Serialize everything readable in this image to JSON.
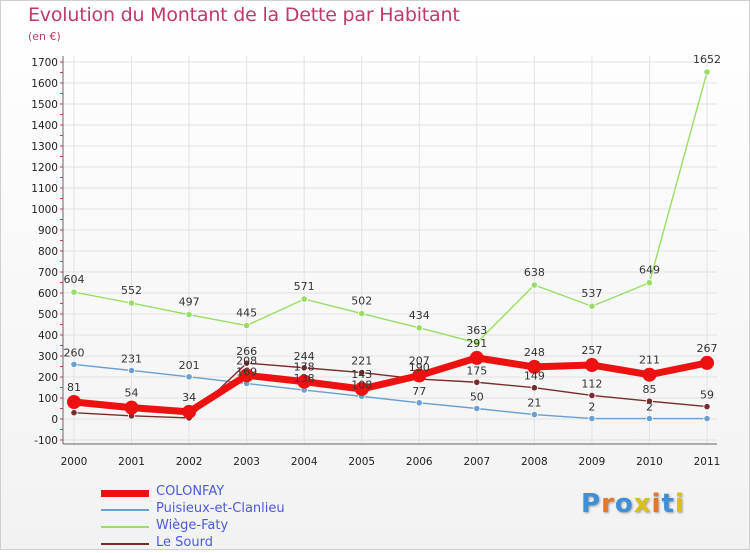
{
  "header": {
    "title": "Evolution du Montant de la Dette par Habitant",
    "subtitle": "(en €)"
  },
  "logo": {
    "text": "Proxiti",
    "colors": [
      "#e8742a",
      "#3f8fd6",
      "#d9c018"
    ]
  },
  "chart_data": {
    "type": "line",
    "title": "Evolution du Montant de la Dette par Habitant",
    "ylabel": "(en €)",
    "xlabel": "",
    "ylim": [
      -100,
      1700
    ],
    "yticks": [
      -100,
      0,
      100,
      200,
      300,
      400,
      500,
      600,
      700,
      800,
      900,
      1000,
      1100,
      1200,
      1300,
      1400,
      1500,
      1600,
      1700
    ],
    "categories": [
      "2000",
      "2001",
      "2002",
      "2003",
      "2004",
      "2005",
      "2006",
      "2007",
      "2008",
      "2009",
      "2010",
      "2011"
    ],
    "grid": true,
    "legend_position": "bottom-left",
    "series": [
      {
        "name": "COLONFAY",
        "color": "#ee1111",
        "values": [
          81,
          54,
          34,
          208,
          178,
          143,
          207,
          291,
          248,
          257,
          211,
          267
        ],
        "labels": [
          "81",
          "54",
          "34",
          "208",
          "178",
          "143",
          "207",
          "291",
          "248",
          "257",
          "211",
          "267"
        ],
        "show_labels": true
      },
      {
        "name": "Puisieux-et-Clanlieu",
        "color": "#6a9fcf",
        "values": [
          260,
          231,
          201,
          169,
          138,
          108,
          77,
          50,
          21,
          2,
          2,
          2
        ],
        "labels": [
          "260",
          "231",
          "201",
          "169",
          "138",
          "108",
          "77",
          "50",
          "21",
          "2",
          "2",
          ""
        ],
        "show_labels": true
      },
      {
        "name": "Wiège-Faty",
        "color": "#99dd66",
        "values": [
          604,
          552,
          497,
          445,
          571,
          502,
          434,
          363,
          638,
          537,
          649,
          1652
        ],
        "labels": [
          "604",
          "552",
          "497",
          "445",
          "571",
          "502",
          "434",
          "363",
          "638",
          "537",
          "649",
          "1652"
        ],
        "show_labels": true
      },
      {
        "name": "Le Sourd",
        "color": "#7a2b2b",
        "values": [
          30,
          15,
          5,
          266,
          244,
          221,
          190,
          175,
          149,
          112,
          85,
          59
        ],
        "labels": [
          "",
          "",
          "",
          "266",
          "244",
          "221",
          "190",
          "175",
          "149",
          "112",
          "85",
          "59"
        ],
        "show_labels": true
      }
    ]
  }
}
